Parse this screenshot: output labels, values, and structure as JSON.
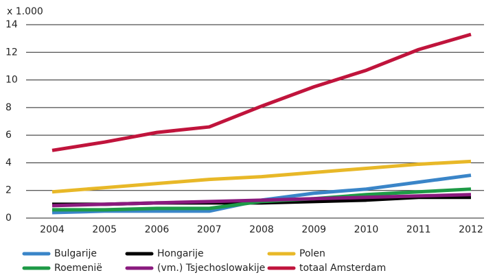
{
  "chart_data": {
    "type": "line",
    "y_label": "x 1.000",
    "categories": [
      "2004",
      "2005",
      "2006",
      "2007",
      "2008",
      "2009",
      "2010",
      "2011",
      "2012"
    ],
    "series": [
      {
        "name": "Bulgarije",
        "color": "#3a85c8",
        "values": [
          0.4,
          0.5,
          0.5,
          0.5,
          1.3,
          1.8,
          2.1,
          2.6,
          3.1
        ]
      },
      {
        "name": "Hongarije",
        "color": "#000000",
        "values": [
          1.0,
          1.0,
          1.1,
          1.1,
          1.1,
          1.2,
          1.3,
          1.5,
          1.5
        ]
      },
      {
        "name": "Polen",
        "color": "#e8b828",
        "values": [
          1.9,
          2.2,
          2.5,
          2.8,
          3.0,
          3.3,
          3.6,
          3.9,
          4.1
        ]
      },
      {
        "name": "Roemenië",
        "color": "#1e9a46",
        "values": [
          0.6,
          0.6,
          0.7,
          0.7,
          1.2,
          1.4,
          1.7,
          1.9,
          2.1
        ]
      },
      {
        "name": "(vm.) Tsjechoslowakije",
        "color": "#8a1a7e",
        "values": [
          0.9,
          1.0,
          1.1,
          1.2,
          1.3,
          1.4,
          1.5,
          1.6,
          1.7
        ]
      },
      {
        "name": "totaal Amsterdam",
        "color": "#c0143c",
        "values": [
          4.9,
          5.5,
          6.2,
          6.6,
          8.1,
          9.5,
          10.7,
          12.2,
          13.3
        ]
      }
    ],
    "ylim": [
      0,
      14
    ],
    "yticks": [
      0,
      2,
      4,
      6,
      8,
      10,
      12,
      14
    ],
    "grid": true
  }
}
